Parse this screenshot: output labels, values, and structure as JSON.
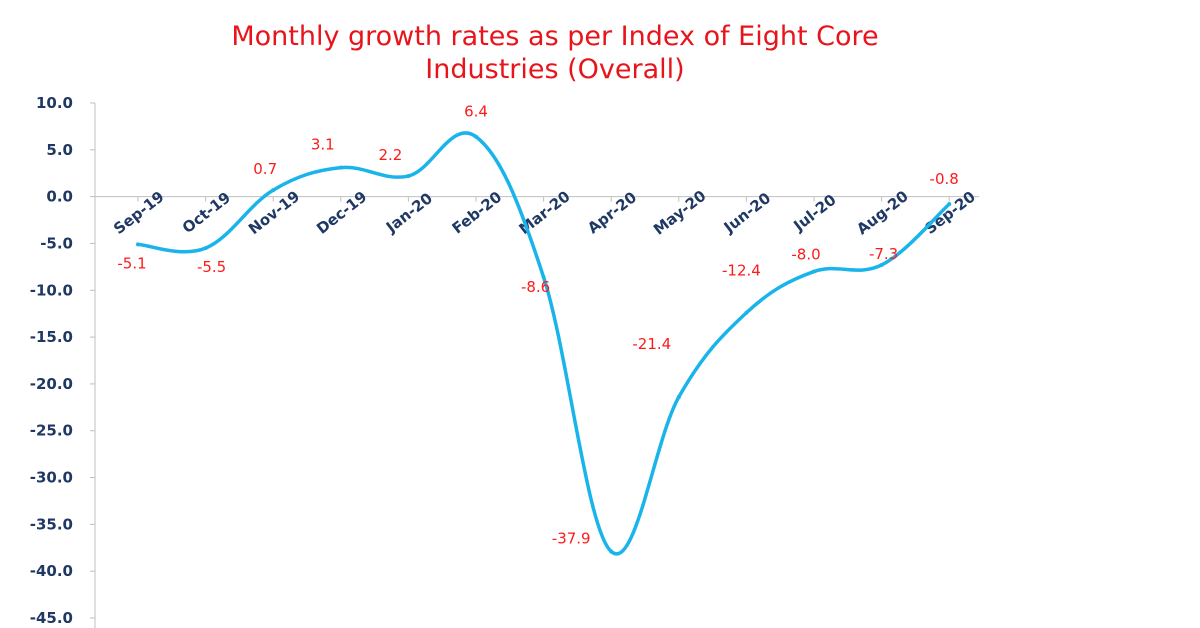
{
  "chart_data": {
    "type": "line",
    "title_lines": [
      "Monthly growth rates as per Index of Eight Core",
      "Industries (Overall)"
    ],
    "title": "Monthly growth rates as per Index of Eight Core Industries (Overall)",
    "categories": [
      "Sep-19",
      "Oct-19",
      "Nov-19",
      "Dec-19",
      "Jan-20",
      "Feb-20",
      "Mar-20",
      "Apr-20",
      "May-20",
      "Jun-20",
      "Jul-20",
      "Aug-20",
      "Sep-20"
    ],
    "values": [
      -5.1,
      -5.5,
      0.7,
      3.1,
      2.2,
      6.4,
      -8.6,
      -37.9,
      -21.4,
      -12.4,
      -8.0,
      -7.3,
      -0.8
    ],
    "data_labels": [
      "-5.1",
      "-5.5",
      "0.7",
      "3.1",
      "2.2",
      "6.4",
      "-8.6",
      "-37.9",
      "-21.4",
      "-12.4",
      "-8.0",
      "-7.3",
      "-0.8"
    ],
    "y_ticks": [
      "10.0",
      "5.0",
      "0.0",
      "-5.0",
      "-10.0",
      "-15.0",
      "-20.0",
      "-25.0",
      "-30.0",
      "-35.0",
      "-40.0",
      "-45.0"
    ],
    "y_tick_values": [
      10,
      5,
      0,
      -5,
      -10,
      -15,
      -20,
      -25,
      -30,
      -35,
      -40,
      -45
    ],
    "ylim": [
      -45,
      10
    ],
    "xlabel": "",
    "ylabel": "",
    "grid": false,
    "legend": false,
    "colors": {
      "line": "#19b4ea",
      "title": "#e8141c",
      "labels": "#ff1a1a",
      "axis_text": "#1f3864",
      "axis": "#bfbfbf"
    }
  }
}
